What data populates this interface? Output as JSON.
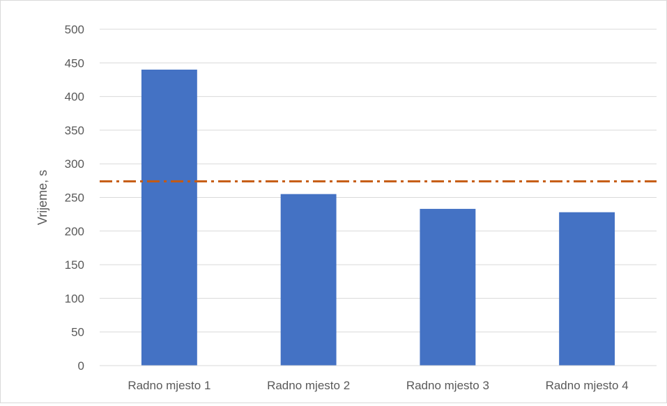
{
  "chart_data": {
    "type": "bar",
    "title": "",
    "xlabel": "",
    "ylabel": "Vrijeme, s",
    "categories": [
      "Radno mjesto 1",
      "Radno mjesto 2",
      "Radno mjesto 3",
      "Radno mjesto 4"
    ],
    "series": [
      {
        "values": [
          440,
          255,
          233,
          228
        ],
        "color": "#4472c4"
      }
    ],
    "reference_line": {
      "value": 274,
      "color": "#c55a11",
      "style": "dash-dot"
    },
    "ylim": [
      0,
      500
    ],
    "y_ticks": [
      "0",
      "50",
      "100",
      "150",
      "200",
      "250",
      "300",
      "350",
      "400",
      "450",
      "500"
    ],
    "grid": true,
    "legend": "none"
  }
}
